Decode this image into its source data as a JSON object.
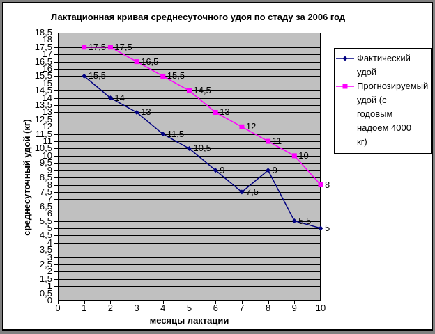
{
  "chart": {
    "title": "Лактационная кривая среднесуточного удоя по стаду за 2006 год",
    "x_axis_title": "месяцы лактации",
    "y_axis_title": "среднесуточный удой (кг)"
  },
  "chart_data": {
    "type": "line",
    "title": "Лактационная кривая среднесуточного удоя по стаду за 2006 год",
    "xlabel": "месяцы лактации",
    "ylabel": "среднесуточный удой (кг)",
    "x": [
      1,
      2,
      3,
      4,
      5,
      6,
      7,
      8,
      9,
      10
    ],
    "series": [
      {
        "name": "Фактический удой",
        "values": [
          15.5,
          14,
          13,
          11.5,
          10.5,
          9,
          7.5,
          9,
          5.5,
          5
        ],
        "color": "#000080",
        "marker": "diamond"
      },
      {
        "name": "Прогнозируемый удой (с годовым надоем 4000 кг)",
        "values": [
          17.5,
          17.5,
          16.5,
          15.5,
          14.5,
          13,
          12,
          11,
          10,
          8
        ],
        "color": "#FF00FF",
        "marker": "square"
      }
    ],
    "xlim": [
      0,
      10
    ],
    "ylim": [
      0,
      18.5
    ],
    "y_tick_step": 0.5,
    "x_ticks": [
      0,
      1,
      2,
      3,
      4,
      5,
      6,
      7,
      8,
      9,
      10
    ],
    "y_ticks": [
      "18,5",
      "18",
      "17,5",
      "17",
      "16,5",
      "16",
      "15,5",
      "15",
      "14,5",
      "14",
      "13,5",
      "13",
      "12,5",
      "12",
      "11,5",
      "11",
      "10,5",
      "10",
      "9,5",
      "9",
      "8,5",
      "8",
      "7,5",
      "7",
      "6,5",
      "6",
      "5,5",
      "5",
      "4,5",
      "4",
      "3,5",
      "3",
      "2,5",
      "2",
      "1,5",
      "1",
      "0,5",
      "0"
    ],
    "grid": "horizontal",
    "legend_position": "right",
    "data_labels": "right-of-point, decimal comma",
    "decimal_separator": ",",
    "colors": {
      "plot_background": "#C0C0C0",
      "gridline": "#000000",
      "outer_frame": "#808080",
      "chart_background": "#FFFFFF",
      "text": "#000000"
    }
  }
}
